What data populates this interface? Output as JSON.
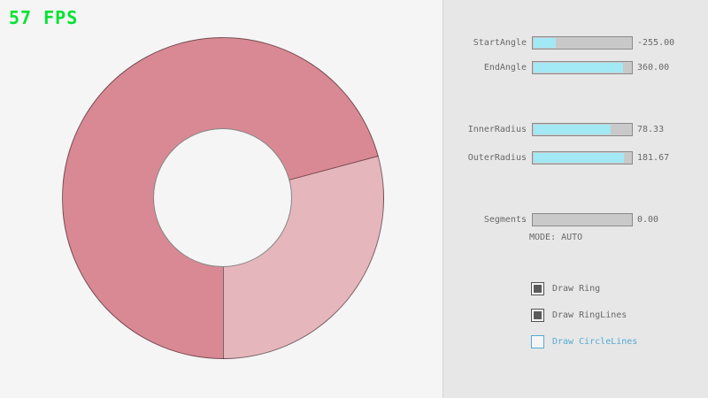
{
  "colors": {
    "main_bg": "#F5F5F5",
    "panel_bg": "#E7E7E7",
    "panel_border": "#D4D4D4",
    "fps_green": "#00E430",
    "ring_dark": "#D98994",
    "ring_light": "#E6B6BD",
    "ring_line": "rgba(0,0,0,0.45)",
    "accent_fill": "#A3E8F5",
    "slider_bg": "#C9C9C9",
    "slider_border": "#8A8A8A",
    "checkbox_border": "#525252",
    "checkbox_dark": "#5A5A5A",
    "accent_blue": "#55ABD5",
    "text": "#686868"
  },
  "fps": {
    "text": "57 FPS"
  },
  "panel": {
    "sliders": [
      {
        "label": "StartAngle",
        "value": "-255.00",
        "fill_pct": 22
      },
      {
        "label": "EndAngle",
        "value": "360.00",
        "fill_pct": 90
      },
      {
        "label": "InnerRadius",
        "value": "78.33",
        "fill_pct": 78
      },
      {
        "label": "OuterRadius",
        "value": "181.67",
        "fill_pct": 91
      },
      {
        "label": "Segments",
        "value": "0.00",
        "fill_pct": 0
      }
    ],
    "mode_text": "MODE: AUTO",
    "checkboxes": [
      {
        "label": "Draw Ring",
        "checked": true
      },
      {
        "label": "Draw RingLines",
        "checked": true
      },
      {
        "label": "Draw CircleLines",
        "checked": false
      }
    ]
  }
}
